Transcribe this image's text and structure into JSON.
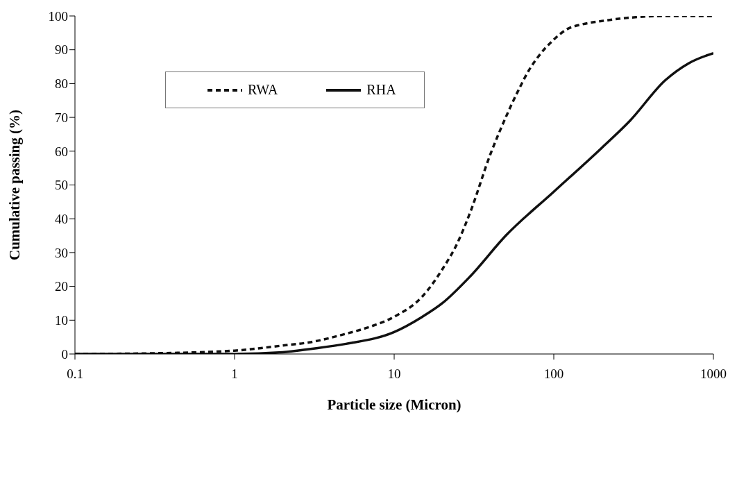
{
  "chart_data": {
    "type": "line",
    "xlabel": "Particle size (Micron)",
    "ylabel": "Cumulative passing (%)",
    "log": "x",
    "xlim": [
      0.1,
      1000
    ],
    "xticks": [
      0.1,
      1,
      10,
      100,
      1000
    ],
    "ylim": [
      0,
      100
    ],
    "yticks": [
      0,
      10,
      20,
      30,
      40,
      50,
      60,
      70,
      80,
      90,
      100
    ],
    "grid": false,
    "legend": "top left",
    "marker": "none",
    "series": [
      {
        "name": "RWA",
        "color": "#111111",
        "line_style": "dashed",
        "x": [
          0.1,
          0.3,
          1,
          2,
          3,
          5,
          7,
          10,
          15,
          20,
          25,
          30,
          40,
          50,
          60,
          70,
          80,
          100,
          120,
          150,
          200,
          300,
          500,
          1000
        ],
        "values": [
          0,
          0.2,
          1,
          2.5,
          3.5,
          6,
          8,
          11,
          17,
          25,
          33,
          42,
          59,
          70,
          78,
          84,
          88,
          93,
          96,
          97.5,
          98.5,
          99.5,
          100,
          100
        ]
      },
      {
        "name": "RHA",
        "color": "#111111",
        "line_style": "solid",
        "x": [
          0.1,
          1,
          2,
          3,
          5,
          10,
          15,
          20,
          30,
          50,
          100,
          200,
          300,
          500,
          700,
          1000
        ],
        "values": [
          0,
          0,
          0.5,
          1.5,
          3,
          6.5,
          11,
          15,
          23,
          35,
          48,
          61,
          69,
          81,
          86,
          89
        ]
      }
    ]
  }
}
